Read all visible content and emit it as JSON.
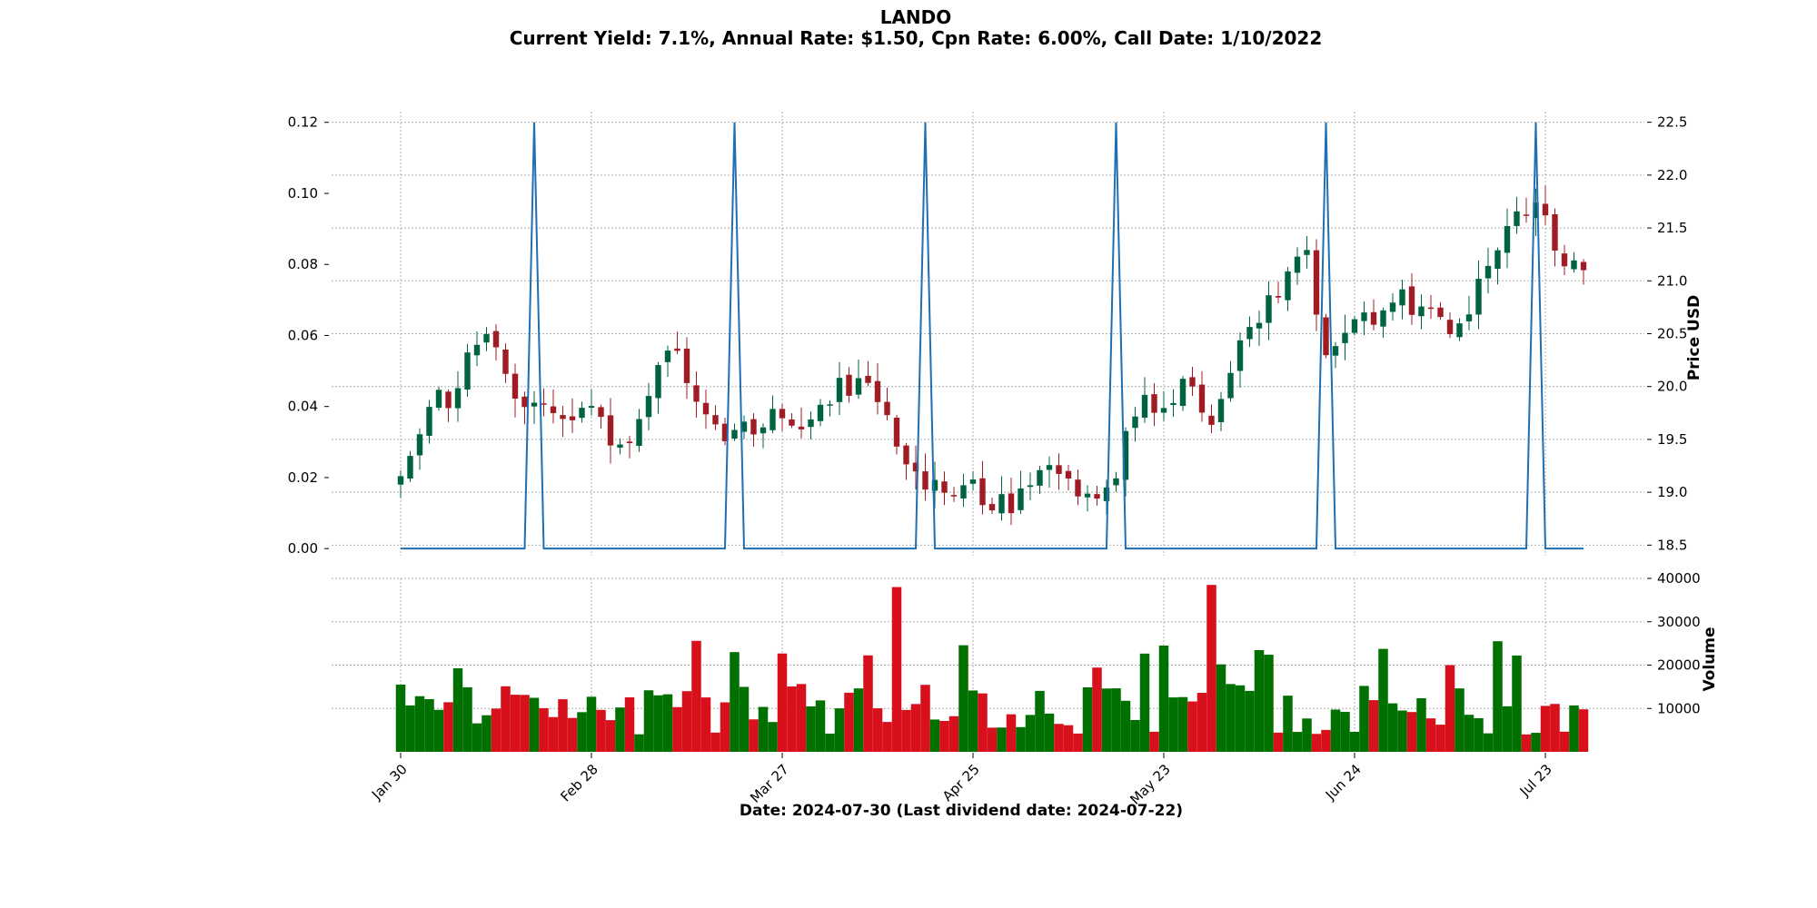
{
  "title": "LANDO",
  "subtitle": "Current Yield: 7.1%, Annual Rate: $1.50, Cpn Rate: 6.00%, Call Date: 1/10/2022",
  "xlabel": "Date: 2024-07-30   (Last dividend date: 2024-07-22)",
  "colors": {
    "up": "#006340",
    "down": "#a01c24",
    "vol_up": "#007000",
    "vol_down": "#d7101c",
    "dividend_line": "#1f6fb3",
    "grid": "#b0b0b0"
  },
  "chart_data": {
    "type": "candlestick",
    "x_tick_labels": [
      "Jan 30",
      "Feb 28",
      "Mar 27",
      "Apr 25",
      "May 23",
      "Jun 24",
      "Jul 23"
    ],
    "x_tick_indices": [
      0,
      20,
      40,
      60,
      80,
      100,
      120
    ],
    "num_bars": 125,
    "price_axis": {
      "label": "Price USD",
      "ylim": [
        18.4,
        22.6
      ],
      "ticks": [
        18.5,
        19.0,
        19.5,
        20.0,
        20.5,
        21.0,
        21.5,
        22.0,
        22.5
      ]
    },
    "dividend_axis": {
      "ylim": [
        -0.002,
        0.123
      ],
      "ticks": [
        0.0,
        0.02,
        0.04,
        0.06,
        0.08,
        0.1,
        0.12
      ],
      "tick_labels": [
        "0.00",
        "0.02",
        "0.04",
        "0.06",
        "0.08",
        "0.10",
        "0.12"
      ]
    },
    "volume_axis": {
      "label": "Volume",
      "ylim": [
        0,
        40000
      ],
      "ticks": [
        10000,
        20000,
        30000,
        40000
      ]
    },
    "dividend_spikes": {
      "value": 0.12,
      "indices": [
        14,
        35,
        55,
        75,
        97,
        119
      ]
    },
    "price_anchors": [
      [
        0,
        19.25
      ],
      [
        3,
        19.8
      ],
      [
        5,
        19.9
      ],
      [
        8,
        20.5
      ],
      [
        10,
        20.4
      ],
      [
        12,
        19.9
      ],
      [
        14,
        19.75
      ],
      [
        18,
        19.75
      ],
      [
        20,
        19.8
      ],
      [
        22,
        19.45
      ],
      [
        24,
        19.5
      ],
      [
        27,
        20.1
      ],
      [
        29,
        20.35
      ],
      [
        32,
        19.6
      ],
      [
        35,
        19.5
      ],
      [
        39,
        19.7
      ],
      [
        43,
        19.55
      ],
      [
        45,
        19.9
      ],
      [
        47,
        20.05
      ],
      [
        49,
        19.9
      ],
      [
        52,
        19.5
      ],
      [
        55,
        18.95
      ],
      [
        58,
        19.05
      ],
      [
        61,
        19.0
      ],
      [
        64,
        18.9
      ],
      [
        67,
        19.25
      ],
      [
        70,
        19.05
      ],
      [
        72,
        19.0
      ],
      [
        75,
        19.15
      ],
      [
        77,
        19.75
      ],
      [
        80,
        19.85
      ],
      [
        82,
        20.0
      ],
      [
        85,
        19.75
      ],
      [
        88,
        20.45
      ],
      [
        91,
        20.75
      ],
      [
        95,
        21.3
      ],
      [
        97,
        20.3
      ],
      [
        99,
        20.45
      ],
      [
        101,
        20.65
      ],
      [
        104,
        20.85
      ],
      [
        107,
        20.8
      ],
      [
        110,
        20.4
      ],
      [
        113,
        21.0
      ],
      [
        116,
        21.45
      ],
      [
        119,
        21.75
      ],
      [
        121,
        21.3
      ],
      [
        124,
        21.05
      ]
    ],
    "volume_highlights": {
      "35": 23000,
      "52": 38000,
      "80": 24500,
      "85": 38500,
      "110": 20000
    }
  }
}
